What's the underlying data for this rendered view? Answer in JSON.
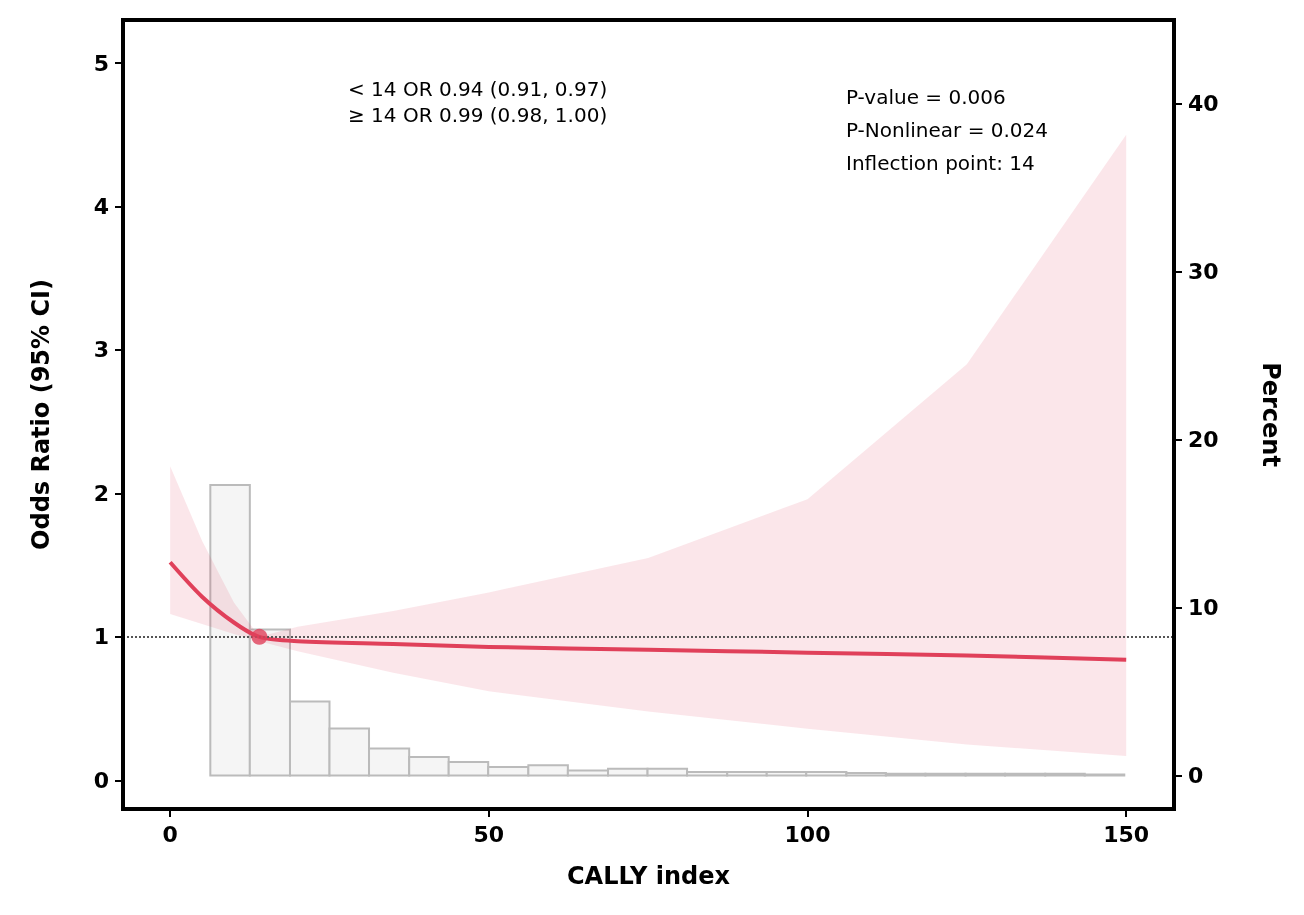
{
  "chart_data": {
    "type": "line",
    "xlabel": "CALLY index",
    "ylabel": "Odds Ratio (95% CI)",
    "y2label": "Percent",
    "xlim": [
      -7.4,
      157.5
    ],
    "xticks": [
      0,
      50,
      100,
      150
    ],
    "ylim": [
      -0.2,
      5.3
    ],
    "yticks": [
      0,
      1,
      2,
      3,
      4,
      5
    ],
    "y2lim": [
      -2,
      45
    ],
    "y2ticks": [
      0,
      10,
      20,
      30,
      40
    ],
    "grid": false,
    "series": [
      {
        "type": "histogram",
        "axis": "y2",
        "color": "#f5f5f5",
        "bins": [
          6.3,
          12.5,
          18.8,
          25.0,
          31.2,
          37.5,
          43.7,
          49.9,
          56.2,
          62.4,
          68.7,
          74.9,
          81.1,
          87.4,
          93.6,
          99.8,
          106.1,
          112.3,
          118.5,
          124.8,
          131.0,
          137.3,
          143.5,
          149.7
        ],
        "values": [
          17.3,
          8.7,
          4.4,
          2.8,
          1.6,
          1.1,
          0.8,
          0.5,
          0.6,
          0.3,
          0.4,
          0.4,
          0.2,
          0.2,
          0.2,
          0.2,
          0.15,
          0.1,
          0.1,
          0.1,
          0.1,
          0.1,
          0.05
        ]
      },
      {
        "color": "#e0405a",
        "marker": "none",
        "x": [
          0,
          5,
          10,
          14,
          20,
          35,
          50,
          75,
          100,
          125,
          150
        ],
        "values": [
          1.52,
          1.28,
          1.1,
          1.0,
          0.97,
          0.95,
          0.93,
          0.91,
          0.89,
          0.87,
          0.84
        ],
        "lower": [
          1.16,
          1.09,
          1.02,
          0.97,
          0.9,
          0.75,
          0.62,
          0.48,
          0.36,
          0.25,
          0.17
        ],
        "upper": [
          2.19,
          1.67,
          1.24,
          1.0,
          1.07,
          1.18,
          1.31,
          1.55,
          1.96,
          2.9,
          4.5
        ]
      },
      {
        "type": "scatter",
        "color": "#e0405a",
        "marker": "circle",
        "x": [
          14
        ],
        "values": [
          1
        ]
      }
    ],
    "ref_lines": [
      {
        "axis": "y",
        "value": 1,
        "line_style": "dotted",
        "color": "#555555"
      }
    ],
    "annotations": [
      "< 14 OR 0.94 (0.91, 0.97)",
      "≥ 14 OR 0.99 (0.98, 1.00)",
      "P-value = 0.006",
      "P-Nonlinear = 0.024",
      "Inflection point: 14"
    ]
  }
}
